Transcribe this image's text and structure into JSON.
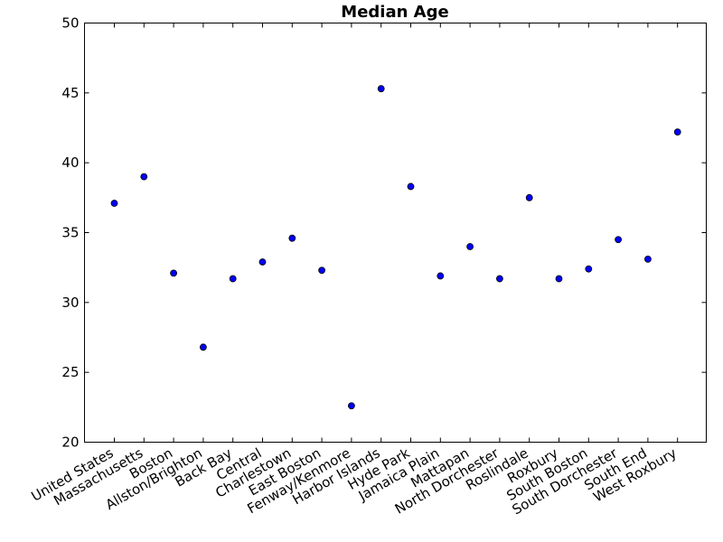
{
  "chart_data": {
    "type": "scatter",
    "title": "Median Age",
    "xlabel": "",
    "ylabel": "",
    "ylim": [
      20,
      50
    ],
    "yticks": [
      20,
      25,
      30,
      35,
      40,
      45,
      50
    ],
    "grid": false,
    "marker_color": "#0000ff",
    "categories": [
      "United States",
      "Massachusetts",
      "Boston",
      "Allston/Brighton",
      "Back Bay",
      "Central",
      "Charlestown",
      "East Boston",
      "Fenway/Kenmore",
      "Harbor Islands",
      "Hyde Park",
      "Jamaica Plain",
      "Mattapan",
      "North Dorchester",
      "Roslindale",
      "Roxbury",
      "South Boston",
      "South Dorchester",
      "South End",
      "West Roxbury"
    ],
    "values": [
      37.1,
      39.0,
      32.1,
      26.8,
      31.7,
      32.9,
      34.6,
      32.3,
      22.6,
      45.3,
      38.3,
      31.9,
      34.0,
      31.7,
      37.5,
      31.7,
      32.4,
      34.5,
      33.1,
      42.2
    ]
  }
}
